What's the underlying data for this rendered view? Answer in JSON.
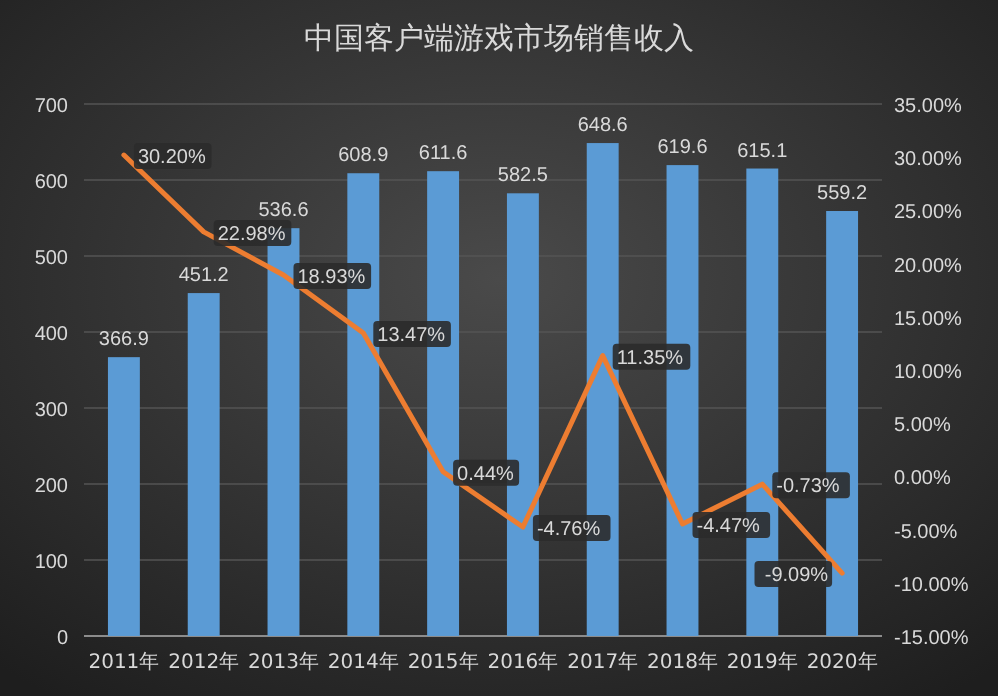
{
  "chart_data": {
    "type": "bar",
    "title": "中国客户端游戏市场销售收入",
    "categories": [
      "2011年",
      "2012年",
      "2013年",
      "2014年",
      "2015年",
      "2016年",
      "2017年",
      "2018年",
      "2019年",
      "2020年"
    ],
    "series": [
      {
        "color": "#5b9bd5",
        "values": [
          366.9,
          451.2,
          536.6,
          608.9,
          611.6,
          582.5,
          648.6,
          619.6,
          615.1,
          559.2
        ],
        "value_labels": [
          "366.9",
          "451.2",
          "536.6",
          "608.9",
          "611.6",
          "582.5",
          "648.6",
          "619.6",
          "615.1",
          "559.2"
        ]
      },
      {
        "type": "line",
        "axis": "y2",
        "color": "#ed7d31",
        "values": [
          30.2,
          22.98,
          18.93,
          13.47,
          0.44,
          -4.76,
          11.35,
          -4.47,
          -0.73,
          -9.09
        ],
        "value_labels": [
          "30.20%",
          "22.98%",
          "18.93%",
          "13.47%",
          "0.44%",
          "-4.76%",
          "11.35%",
          "-4.47%",
          "-0.73%",
          "-9.09%"
        ]
      }
    ],
    "ylim": [
      0,
      700
    ],
    "yticks": [
      0,
      100,
      200,
      300,
      400,
      500,
      600,
      700
    ],
    "y2lim": [
      -15,
      35
    ],
    "y2ticks": [
      {
        "value": -15,
        "label": "-15.00%"
      },
      {
        "value": -10,
        "label": "-10.00%"
      },
      {
        "value": -5,
        "label": "-5.00%"
      },
      {
        "value": 0,
        "label": "0.00%"
      },
      {
        "value": 5,
        "label": "5.00%"
      },
      {
        "value": 10,
        "label": "10.00%"
      },
      {
        "value": 15,
        "label": "15.00%"
      },
      {
        "value": 20,
        "label": "20.00%"
      },
      {
        "value": 25,
        "label": "25.00%"
      },
      {
        "value": 30,
        "label": "30.00%"
      },
      {
        "value": 35,
        "label": "35.00%"
      }
    ],
    "grid": "y",
    "marker": "none",
    "line_style": "solid"
  }
}
